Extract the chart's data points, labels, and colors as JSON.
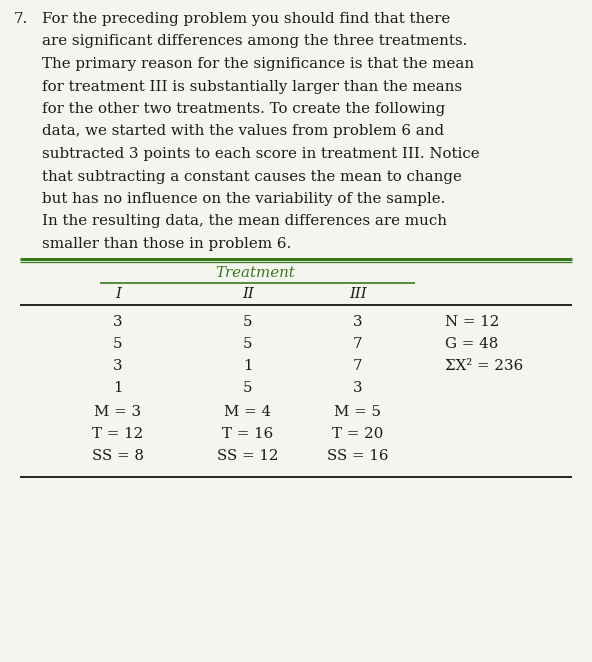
{
  "problem_number": "7.",
  "paragraph_lines": [
    "For the preceding problem you should find that there",
    "are significant differences among the three treatments.",
    "The primary reason for the significance is that the mean",
    "for treatment III is substantially larger than the means",
    "for the other two treatments. To create the following",
    "data, we started with the values from problem 6 and",
    "subtracted 3 points to each score in treatment III. Notice",
    "that subtracting a constant causes the mean to change",
    "but has no influence on the variability of the sample.",
    "In the resulting data, the mean differences are much",
    "smaller than those in problem 6."
  ],
  "table_header_group": "Treatment",
  "col_headers": [
    "I",
    "II",
    "III"
  ],
  "data_rows": [
    [
      "3",
      "5",
      "3"
    ],
    [
      "5",
      "5",
      "7"
    ],
    [
      "3",
      "1",
      "7"
    ],
    [
      "1",
      "5",
      "3"
    ]
  ],
  "summary_rows": [
    [
      "M = 3",
      "M = 4",
      "M = 5"
    ],
    [
      "T = 12",
      "T = 16",
      "T = 20"
    ],
    [
      "SS = 8",
      "SS = 12",
      "SS = 16"
    ]
  ],
  "side_notes": [
    "N = 12",
    "G = 48",
    "ΣX² = 236"
  ],
  "green_color": "#3a7a1e",
  "text_color": "#1a1a1a",
  "bg_color": "#f5f5f0",
  "font_size_para": 10.8,
  "font_size_table": 10.8
}
